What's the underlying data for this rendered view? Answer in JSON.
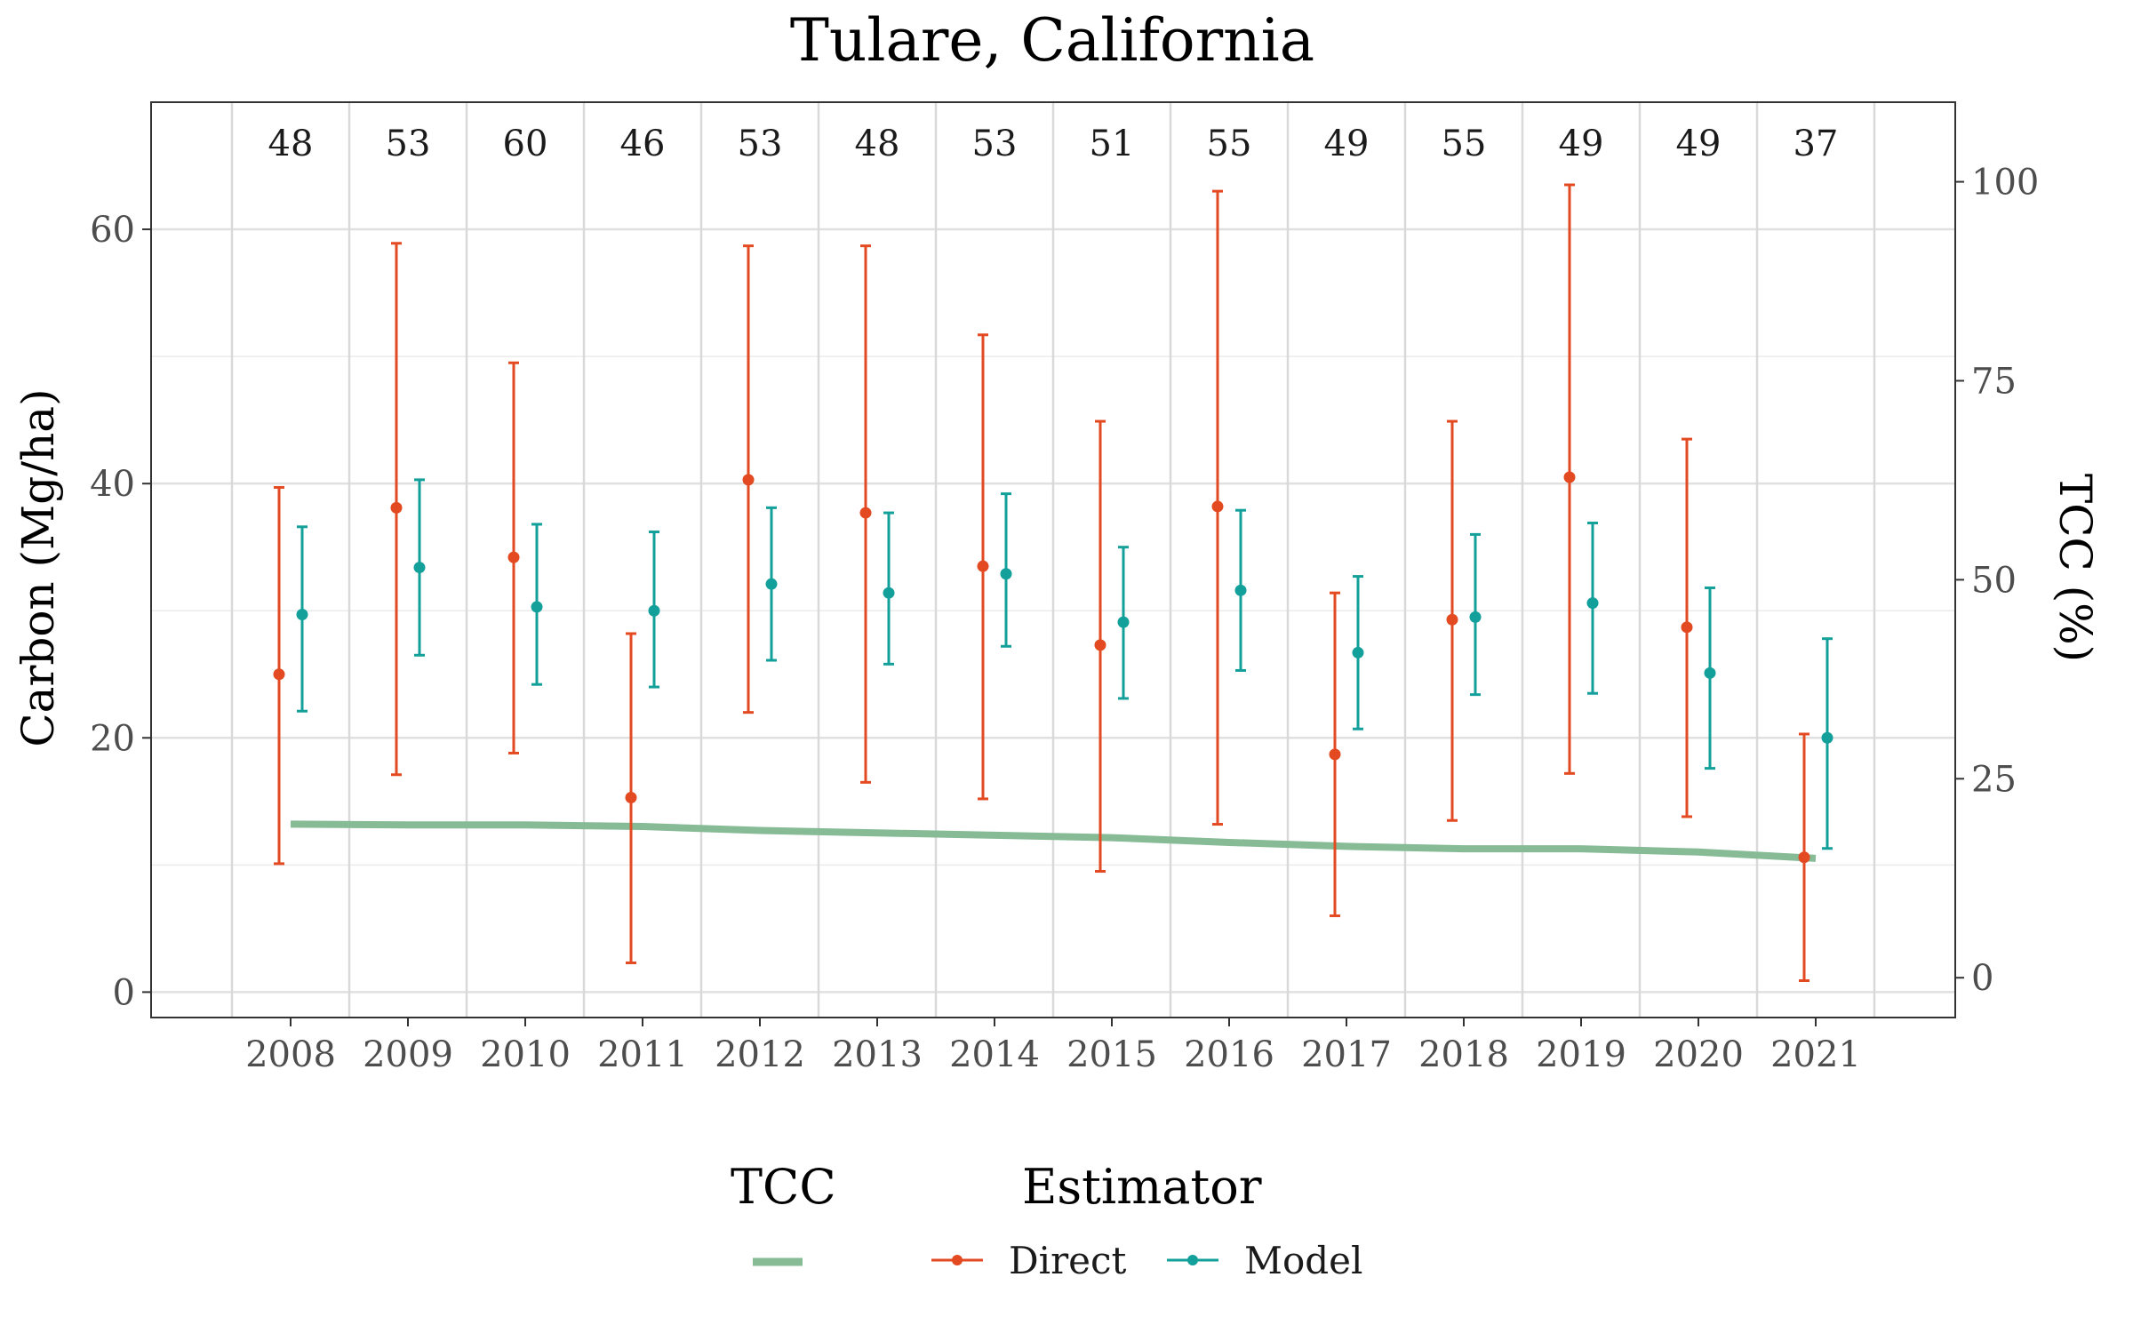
{
  "chart_data": {
    "type": "line",
    "title": "Tulare, California",
    "ylabel": "Carbon (Mg/ha)",
    "y2label": "TCC (%)",
    "categories": [
      "2008",
      "2009",
      "2010",
      "2011",
      "2012",
      "2013",
      "2014",
      "2015",
      "2016",
      "2017",
      "2018",
      "2019",
      "2020",
      "2021"
    ],
    "counts": [
      "48",
      "53",
      "60",
      "46",
      "53",
      "48",
      "53",
      "51",
      "55",
      "49",
      "55",
      "49",
      "49",
      "37"
    ],
    "ylim": [
      -2,
      70
    ],
    "y2lim": [
      -5,
      110
    ],
    "yticks": [
      0,
      20,
      40,
      60
    ],
    "y2ticks": [
      0,
      25,
      50,
      75,
      100
    ],
    "grid": true,
    "legend_position": "bottom",
    "series": [
      {
        "name": "Direct",
        "color": "#e34a21",
        "values": [
          25.0,
          38.1,
          34.2,
          15.3,
          40.3,
          37.7,
          33.5,
          27.3,
          38.2,
          18.7,
          29.3,
          40.5,
          28.7,
          10.6
        ],
        "lower": [
          10.1,
          17.1,
          18.8,
          2.3,
          22.0,
          16.5,
          15.2,
          9.5,
          13.2,
          6.0,
          13.5,
          17.2,
          13.8,
          0.9
        ],
        "upper": [
          39.7,
          58.9,
          49.5,
          28.2,
          58.7,
          58.7,
          51.7,
          44.9,
          63.0,
          31.4,
          44.9,
          63.5,
          43.5,
          20.3
        ]
      },
      {
        "name": "Model",
        "color": "#13a09a",
        "values": [
          29.7,
          33.4,
          30.3,
          30.0,
          32.1,
          31.4,
          32.9,
          29.1,
          31.6,
          26.7,
          29.5,
          30.6,
          25.1,
          20.0
        ],
        "lower": [
          22.1,
          26.5,
          24.2,
          24.0,
          26.1,
          25.8,
          27.2,
          23.1,
          25.3,
          20.7,
          23.4,
          23.5,
          17.6,
          11.3
        ],
        "upper": [
          36.6,
          40.3,
          36.8,
          36.2,
          38.1,
          37.7,
          39.2,
          35.0,
          37.9,
          32.7,
          36.0,
          36.9,
          31.8,
          27.8
        ]
      },
      {
        "name": "TCC",
        "axis": "right",
        "color": "#86bb96",
        "values": [
          19.3,
          19.2,
          19.2,
          19.0,
          18.5,
          18.2,
          17.9,
          17.6,
          17.0,
          16.5,
          16.2,
          16.2,
          15.8,
          15.0
        ]
      }
    ],
    "legend": {
      "tcc_title": "TCC",
      "estimator_title": "Estimator",
      "items": [
        "Direct",
        "Model"
      ]
    }
  }
}
